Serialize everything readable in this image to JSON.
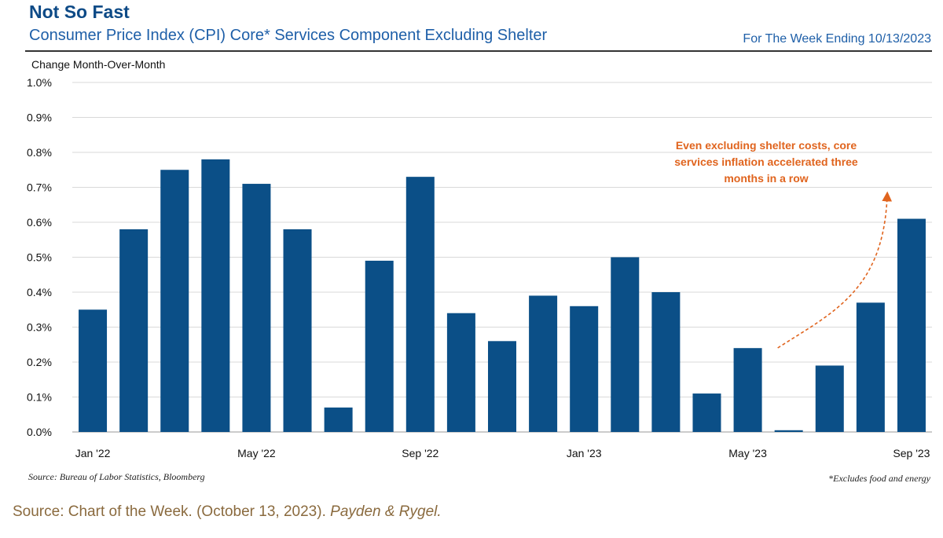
{
  "header": {
    "headline": "Not So Fast",
    "subtitle": "Consumer Price Index (CPI) Core* Services Component Excluding Shelter",
    "week_ending": "For The Week Ending 10/13/2023"
  },
  "footer": {
    "source": "Source: Bureau of Labor Statistics, Bloomberg",
    "note": "*Excludes food and energy"
  },
  "citation": {
    "text": "Source: Chart of the Week. (October 13, 2023).",
    "publisher": "Payden & Rygel."
  },
  "colors": {
    "bar": "#0b4f87",
    "annotation": "#e0641e",
    "grid": "#d9d9d9"
  },
  "chart_data": {
    "type": "bar",
    "title": "Consumer Price Index (CPI) Core* Services Component Excluding Shelter",
    "ylabel": "Change Month-Over-Month",
    "xlabel": "",
    "ylim": [
      0,
      1.0
    ],
    "yticks": [
      0.0,
      0.1,
      0.2,
      0.3,
      0.4,
      0.5,
      0.6,
      0.7,
      0.8,
      0.9,
      1.0
    ],
    "ytick_labels": [
      "0.0%",
      "0.1%",
      "0.2%",
      "0.3%",
      "0.4%",
      "0.5%",
      "0.6%",
      "0.7%",
      "0.8%",
      "0.9%",
      "1.0%"
    ],
    "categories": [
      "Jan '22",
      "Feb '22",
      "Mar '22",
      "Apr '22",
      "May '22",
      "Jun '22",
      "Jul '22",
      "Aug '22",
      "Sep '22",
      "Oct '22",
      "Nov '22",
      "Dec '22",
      "Jan '23",
      "Feb '23",
      "Mar '23",
      "Apr '23",
      "May '23",
      "Jun '23",
      "Jul '23",
      "Aug '23",
      "Sep '23"
    ],
    "values": [
      0.35,
      0.58,
      0.75,
      0.78,
      0.71,
      0.58,
      0.07,
      0.49,
      0.73,
      0.34,
      0.26,
      0.39,
      0.36,
      0.5,
      0.4,
      0.11,
      0.24,
      0.005,
      0.19,
      0.37,
      0.61
    ],
    "xtick_labels": [
      {
        "index": 0,
        "label": "Jan '22"
      },
      {
        "index": 4,
        "label": "May '22"
      },
      {
        "index": 8,
        "label": "Sep '22"
      },
      {
        "index": 12,
        "label": "Jan '23"
      },
      {
        "index": 16,
        "label": "May '23"
      },
      {
        "index": 20,
        "label": "Sep '23"
      }
    ],
    "annotation": {
      "lines": [
        "Even excluding shelter costs, core",
        "services inflation accelerated three",
        "months in a row"
      ],
      "arrow_from_index": 17,
      "arrow_to_index": 20
    }
  }
}
